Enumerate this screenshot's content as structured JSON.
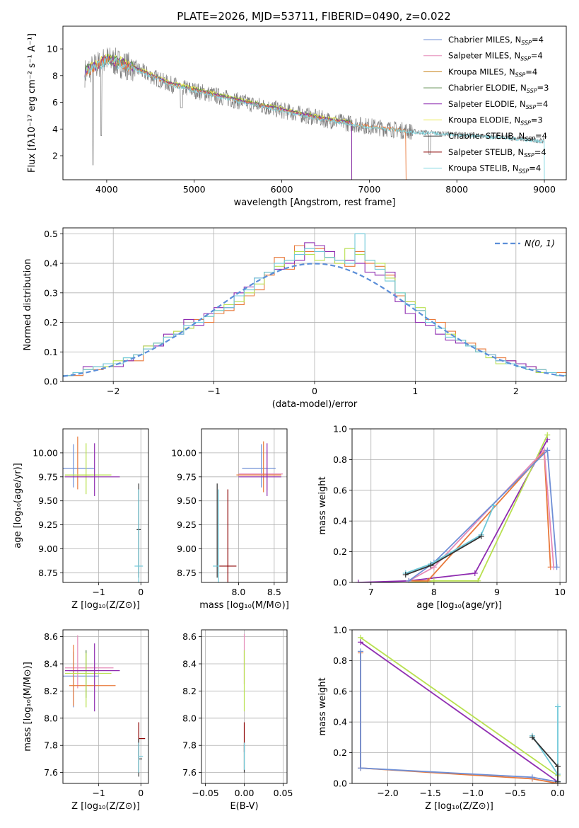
{
  "colors": {
    "chabrier_miles": "#6f8fd6",
    "salpeter_miles": "#e58ab8",
    "kroupa_miles": "#c8821a",
    "chabrier_elodie": "#5a8a4a",
    "salpeter_elodie": "#8e2bb0",
    "kroupa_elodie": "#e8e84a",
    "chabrier_stelib": "#333333",
    "salpeter_stelib": "#8b0000",
    "kroupa_stelib": "#7fd6e0",
    "data": "#7f7f7f",
    "normal": "#5b8ed8",
    "hist_orange": "#e8783a",
    "hist_lime": "#b8e050",
    "hist_cyan": "#6fc8d8"
  },
  "chart_data": [
    {
      "id": "spectrum",
      "type": "line",
      "title": "PLATE=2026, MJD=53711, FIBERID=0490, z=0.022",
      "xlabel": "wavelength [Angstrom, rest frame]",
      "ylabel": "Flux [fλ10⁻¹⁷ erg cm⁻² s⁻¹ A⁻¹]",
      "xlim": [
        3500,
        9250
      ],
      "ylim": [
        0.2,
        11.7
      ],
      "xticks": [
        4000,
        5000,
        6000,
        7000,
        8000,
        9000
      ],
      "yticks": [
        2,
        4,
        6,
        8,
        10
      ],
      "legend_position": "top-right",
      "legend": [
        {
          "base": "Chabrier MILES, N",
          "sub": "SSP",
          "tail": "=4",
          "color_key": "chabrier_miles"
        },
        {
          "base": "Salpeter MILES, N",
          "sub": "SSP",
          "tail": "=4",
          "color_key": "salpeter_miles"
        },
        {
          "base": "Kroupa MILES, N",
          "sub": "SSP",
          "tail": "=4",
          "color_key": "kroupa_miles"
        },
        {
          "base": "Chabrier ELODIE, N",
          "sub": "SSP",
          "tail": "=3",
          "color_key": "chabrier_elodie"
        },
        {
          "base": "Salpeter ELODIE, N",
          "sub": "SSP",
          "tail": "=4",
          "color_key": "salpeter_elodie"
        },
        {
          "base": "Kroupa ELODIE, N",
          "sub": "SSP",
          "tail": "=3",
          "color_key": "kroupa_elodie"
        },
        {
          "base": "Chabrier STELIB, N",
          "sub": "SSP",
          "tail": "=4",
          "color_key": "chabrier_stelib"
        },
        {
          "base": "Salpeter STELIB, N",
          "sub": "SSP",
          "tail": "=4",
          "color_key": "salpeter_stelib"
        },
        {
          "base": "Kroupa STELIB, N",
          "sub": "SSP",
          "tail": "=4",
          "color_key": "kroupa_stelib"
        }
      ],
      "data_trend": {
        "x": [
          3750,
          4000,
          4300,
          4700,
          5000,
          5500,
          6000,
          6500,
          7000,
          7500,
          8000,
          8500,
          9000
        ],
        "y": [
          8.2,
          9.2,
          8.6,
          7.4,
          6.9,
          6.1,
          5.4,
          4.7,
          4.2,
          3.8,
          3.6,
          3.4,
          3.1
        ]
      },
      "model_cutoffs": {
        "miles_end": 7420,
        "elodie_end": 6800,
        "stelib_end": 9000
      }
    },
    {
      "id": "residuals",
      "type": "bar",
      "xlabel": "(data-model)/error",
      "ylabel": "Normed distribution",
      "xlim": [
        -2.5,
        2.5
      ],
      "ylim": [
        0,
        0.52
      ],
      "xticks": [
        -2,
        -1,
        0,
        1,
        2
      ],
      "yticks": [
        0.0,
        0.1,
        0.2,
        0.3,
        0.4,
        0.5
      ],
      "legend_position": "top-right",
      "normal_label": "N(0, 1)",
      "bin_edges_start": -2.5,
      "bin_width": 0.1,
      "series": [
        {
          "color_key": "hist_orange",
          "values": [
            0.02,
            0.02,
            0.04,
            0.04,
            0.05,
            0.06,
            0.07,
            0.07,
            0.11,
            0.13,
            0.15,
            0.17,
            0.18,
            0.21,
            0.2,
            0.23,
            0.24,
            0.26,
            0.29,
            0.31,
            0.36,
            0.42,
            0.38,
            0.46,
            0.44,
            0.45,
            0.42,
            0.4,
            0.39,
            0.44,
            0.4,
            0.39,
            0.36,
            0.29,
            0.27,
            0.24,
            0.21,
            0.2,
            0.17,
            0.14,
            0.13,
            0.11,
            0.09,
            0.08,
            0.07,
            0.06,
            0.05,
            0.04,
            0.03,
            0.03
          ]
        },
        {
          "color_key": "salpeter_elodie",
          "values": [
            0.02,
            0.03,
            0.05,
            0.05,
            0.06,
            0.05,
            0.07,
            0.09,
            0.12,
            0.12,
            0.16,
            0.16,
            0.21,
            0.19,
            0.23,
            0.25,
            0.25,
            0.3,
            0.32,
            0.35,
            0.37,
            0.38,
            0.4,
            0.41,
            0.47,
            0.46,
            0.44,
            0.41,
            0.41,
            0.4,
            0.37,
            0.36,
            0.37,
            0.27,
            0.23,
            0.2,
            0.19,
            0.16,
            0.14,
            0.13,
            0.12,
            0.1,
            0.09,
            0.07,
            0.07,
            0.06,
            0.05,
            0.03,
            0.03,
            0.02
          ]
        },
        {
          "color_key": "hist_lime",
          "values": [
            0.02,
            0.03,
            0.04,
            0.05,
            0.05,
            0.07,
            0.08,
            0.09,
            0.12,
            0.13,
            0.15,
            0.17,
            0.18,
            0.2,
            0.22,
            0.24,
            0.26,
            0.27,
            0.3,
            0.33,
            0.37,
            0.39,
            0.41,
            0.44,
            0.43,
            0.41,
            0.42,
            0.4,
            0.45,
            0.43,
            0.41,
            0.4,
            0.35,
            0.3,
            0.27,
            0.25,
            0.2,
            0.18,
            0.16,
            0.14,
            0.12,
            0.1,
            0.08,
            0.06,
            0.06,
            0.05,
            0.04,
            0.03,
            0.03,
            0.02
          ]
        },
        {
          "color_key": "hist_cyan",
          "values": [
            0.02,
            0.03,
            0.04,
            0.05,
            0.06,
            0.06,
            0.08,
            0.09,
            0.11,
            0.13,
            0.15,
            0.16,
            0.19,
            0.2,
            0.22,
            0.24,
            0.25,
            0.29,
            0.31,
            0.35,
            0.37,
            0.4,
            0.41,
            0.43,
            0.45,
            0.44,
            0.42,
            0.41,
            0.4,
            0.5,
            0.41,
            0.38,
            0.34,
            0.3,
            0.26,
            0.24,
            0.2,
            0.18,
            0.15,
            0.14,
            0.12,
            0.1,
            0.09,
            0.07,
            0.06,
            0.05,
            0.04,
            0.04,
            0.03,
            0.02
          ]
        }
      ]
    },
    {
      "id": "age_vs_Z",
      "type": "scatter",
      "xlabel": "Z [log₁₀(Z/Z⊙)]",
      "ylabel": "age  [log₁₀(age/yr)]",
      "xlim": [
        -1.85,
        0.18
      ],
      "ylim": [
        8.65,
        10.25
      ],
      "xticks": [
        -1,
        0
      ],
      "yticks": [
        8.75,
        9.0,
        9.25,
        9.5,
        9.75,
        10.0
      ],
      "points": [
        {
          "color_key": "chabrier_miles",
          "x": -1.6,
          "y": 9.84,
          "xerr": [
            0.7,
            0.5
          ],
          "yerr": [
            0.2,
            0.25
          ]
        },
        {
          "color_key": "hist_orange",
          "x": -1.5,
          "y": 9.77,
          "xerr": [
            0.3,
            0.3
          ],
          "yerr": [
            0.15,
            0.4
          ]
        },
        {
          "color_key": "hist_lime",
          "x": -1.3,
          "y": 9.77,
          "xerr": [
            0.5,
            0.6
          ],
          "yerr": [
            0.2,
            0.33
          ]
        },
        {
          "color_key": "salpeter_elodie",
          "x": -1.1,
          "y": 9.75,
          "xerr": [
            0.7,
            0.6
          ],
          "yerr": [
            0.2,
            0.35
          ]
        },
        {
          "color_key": "chabrier_stelib",
          "x": -0.05,
          "y": 9.2,
          "xerr": [
            0.05,
            0.05
          ],
          "yerr": [
            0.5,
            0.48
          ]
        },
        {
          "color_key": "hist_cyan",
          "x": -0.05,
          "y": 8.82,
          "xerr": [
            0.1,
            0.1
          ],
          "yerr": [
            0.17,
            0.8
          ]
        }
      ]
    },
    {
      "id": "age_vs_mass",
      "type": "scatter",
      "xlabel": "mass [log₁₀(M/M⊙)]",
      "ylabel": "",
      "xlim": [
        7.48,
        8.68
      ],
      "ylim": [
        8.65,
        10.25
      ],
      "xticks": [
        8.0,
        8.5
      ],
      "yticks": [
        8.75,
        9.0,
        9.25,
        9.5,
        9.75,
        10.0
      ],
      "points": [
        {
          "color_key": "chabrier_miles",
          "x": 8.32,
          "y": 9.84,
          "xerr": [
            0.27,
            0.2
          ],
          "yerr": [
            0.2,
            0.25
          ]
        },
        {
          "color_key": "salpeter_miles",
          "x": 8.4,
          "y": 9.78,
          "xerr": [
            0.4,
            0.22
          ],
          "yerr": [
            0.17,
            0.25
          ]
        },
        {
          "color_key": "hist_orange",
          "x": 8.35,
          "y": 9.77,
          "xerr": [
            0.38,
            0.25
          ],
          "yerr": [
            0.18,
            0.35
          ]
        },
        {
          "color_key": "salpeter_elodie",
          "x": 8.4,
          "y": 9.75,
          "xerr": [
            0.4,
            0.2
          ],
          "yerr": [
            0.2,
            0.35
          ]
        },
        {
          "color_key": "chabrier_stelib",
          "x": 7.7,
          "y": 9.2,
          "xerr": [
            0.0,
            0.0
          ],
          "yerr": [
            0.5,
            0.48
          ]
        },
        {
          "color_key": "salpeter_stelib",
          "x": 7.85,
          "y": 8.82,
          "xerr": [
            0.12,
            0.12
          ],
          "yerr": [
            0.17,
            0.8
          ]
        },
        {
          "color_key": "hist_cyan",
          "x": 7.72,
          "y": 8.82,
          "xerr": [
            0.08,
            0.0
          ],
          "yerr": [
            0.17,
            0.8
          ]
        }
      ]
    },
    {
      "id": "weight_vs_age",
      "type": "line",
      "xlabel": "age  [log₁₀(age/yr)]",
      "ylabel": "mass weight",
      "xlim": [
        6.7,
        10.1
      ],
      "ylim": [
        0,
        1.0
      ],
      "xticks": [
        7,
        8,
        9,
        10
      ],
      "yticks": [
        0.0,
        0.2,
        0.4,
        0.6,
        0.8,
        1.0
      ],
      "series": [
        {
          "color_key": "salpeter_elodie",
          "x": [
            6.8,
            7.6,
            8.65,
            9.8
          ],
          "y": [
            0.0,
            0.01,
            0.06,
            0.93
          ]
        },
        {
          "color_key": "hist_lime",
          "x": [
            7.6,
            8.0,
            8.7,
            9.8
          ],
          "y": [
            0.0,
            0.01,
            0.01,
            0.96
          ]
        },
        {
          "color_key": "hist_orange",
          "x": [
            7.6,
            7.9,
            9.75,
            9.85
          ],
          "y": [
            0.01,
            0.01,
            0.85,
            0.1
          ]
        },
        {
          "color_key": "salpeter_miles",
          "x": [
            7.6,
            8.0,
            9.75,
            9.9
          ],
          "y": [
            0.01,
            0.1,
            0.86,
            0.1
          ]
        },
        {
          "color_key": "chabrier_miles",
          "x": [
            7.6,
            8.0,
            9.8,
            9.95
          ],
          "y": [
            0.01,
            0.13,
            0.86,
            0.1
          ]
        },
        {
          "color_key": "hist_cyan",
          "x": [
            7.55,
            7.95,
            8.75,
            8.95
          ],
          "y": [
            0.06,
            0.12,
            0.31,
            0.5
          ]
        },
        {
          "color_key": "chabrier_stelib",
          "x": [
            7.55,
            7.95,
            8.75
          ],
          "y": [
            0.05,
            0.11,
            0.3
          ]
        }
      ]
    },
    {
      "id": "mass_vs_Z",
      "type": "scatter",
      "xlabel": "Z [log₁₀(Z/Z⊙)]",
      "ylabel": "mass [log₁₀(M/M⊙)]",
      "xlim": [
        -1.85,
        0.18
      ],
      "ylim": [
        7.52,
        8.65
      ],
      "xticks": [
        -1,
        0
      ],
      "yticks": [
        7.6,
        7.8,
        8.0,
        8.2,
        8.4,
        8.6
      ],
      "points": [
        {
          "color_key": "chabrier_miles",
          "x": -1.6,
          "y": 8.31,
          "xerr": [
            0.6,
            0.6
          ],
          "yerr": [
            0.23,
            0.18
          ]
        },
        {
          "color_key": "salpeter_miles",
          "x": -1.5,
          "y": 8.37,
          "xerr": [
            0.3,
            0.85
          ],
          "yerr": [
            0.15,
            0.24
          ]
        },
        {
          "color_key": "hist_orange",
          "x": -1.6,
          "y": 8.24,
          "xerr": [
            0.1,
            1.0
          ],
          "yerr": [
            0.15,
            0.3
          ]
        },
        {
          "color_key": "chabrier_elodie",
          "x": -1.3,
          "y": 8.35,
          "xerr": [
            0.4,
            0.2
          ],
          "yerr": [
            0.2,
            0.15
          ]
        },
        {
          "color_key": "hist_lime",
          "x": -1.3,
          "y": 8.33,
          "xerr": [
            0.5,
            0.6
          ],
          "yerr": [
            0.25,
            0.15
          ]
        },
        {
          "color_key": "salpeter_elodie",
          "x": -1.1,
          "y": 8.35,
          "xerr": [
            0.7,
            0.6
          ],
          "yerr": [
            0.3,
            0.2
          ]
        },
        {
          "color_key": "salpeter_stelib",
          "x": -0.05,
          "y": 7.85,
          "xerr": [
            0.0,
            0.15
          ],
          "yerr": [
            0.15,
            0.12
          ]
        },
        {
          "color_key": "chabrier_stelib",
          "x": -0.05,
          "y": 7.7,
          "xerr": [
            0.0,
            0.08
          ],
          "yerr": [
            0.13,
            0.15
          ]
        },
        {
          "color_key": "hist_cyan",
          "x": -0.05,
          "y": 7.72,
          "xerr": [
            0.0,
            0.1
          ],
          "yerr": [
            0.12,
            0.1
          ]
        }
      ]
    },
    {
      "id": "mass_vs_ebv",
      "type": "scatter",
      "xlabel": "E(B-V)",
      "ylabel": "",
      "xlim": [
        -0.055,
        0.055
      ],
      "ylim": [
        7.52,
        8.65
      ],
      "xticks": [
        -0.05,
        0.0,
        0.05
      ],
      "xticklabels": [
        "−0.05",
        "0.00",
        "0.05"
      ],
      "yticks": [
        7.6,
        7.8,
        8.0,
        8.2,
        8.4,
        8.6
      ],
      "points": [
        {
          "color_key": "salpeter_miles",
          "x": 0,
          "y": 8.4,
          "xerr": [
            0,
            0
          ],
          "yerr": [
            0.15,
            0.22
          ]
        },
        {
          "color_key": "hist_lime",
          "x": 0,
          "y": 8.3,
          "xerr": [
            0,
            0
          ],
          "yerr": [
            0.25,
            0.2
          ]
        },
        {
          "color_key": "salpeter_stelib",
          "x": 0,
          "y": 7.85,
          "xerr": [
            0,
            0
          ],
          "yerr": [
            0.1,
            0.12
          ]
        },
        {
          "color_key": "chabrier_stelib",
          "x": 0,
          "y": 7.7,
          "xerr": [
            0,
            0
          ],
          "yerr": [
            0.1,
            0.1
          ]
        },
        {
          "color_key": "hist_cyan",
          "x": 0,
          "y": 7.72,
          "xerr": [
            0,
            0
          ],
          "yerr": [
            0.1,
            0.1
          ]
        }
      ]
    },
    {
      "id": "weight_vs_Z",
      "type": "line",
      "xlabel": "Z [log₁₀(Z/Z⊙)]",
      "ylabel": "mass weight",
      "xlim": [
        -2.42,
        0.1
      ],
      "ylim": [
        0,
        1.0
      ],
      "xticks": [
        -2.0,
        -1.5,
        -1.0,
        -0.5,
        0.0
      ],
      "xticklabels": [
        "−2.0",
        "−1.5",
        "−1.0",
        "−0.5",
        "0.0"
      ],
      "yticks": [
        0.0,
        0.2,
        0.4,
        0.6,
        0.8,
        1.0
      ],
      "series": [
        {
          "color_key": "hist_lime",
          "x": [
            -2.32,
            0.0,
            0.0
          ],
          "y": [
            0.95,
            0.05,
            0.0
          ]
        },
        {
          "color_key": "salpeter_elodie",
          "x": [
            -2.32,
            0.0
          ],
          "y": [
            0.92,
            0.01
          ]
        },
        {
          "color_key": "hist_orange",
          "x": [
            -2.32,
            -2.32,
            -0.3,
            0.0
          ],
          "y": [
            0.85,
            0.1,
            0.03,
            0.0
          ]
        },
        {
          "color_key": "chabrier_miles",
          "x": [
            -2.32,
            -2.32,
            -0.3,
            0.0
          ],
          "y": [
            0.86,
            0.1,
            0.04,
            0.01
          ]
        },
        {
          "color_key": "hist_cyan",
          "x": [
            -0.3,
            0.0,
            0.0,
            0.0
          ],
          "y": [
            0.31,
            0.06,
            0.5,
            0.01
          ]
        },
        {
          "color_key": "chabrier_stelib",
          "x": [
            -0.3,
            0.0,
            0.0
          ],
          "y": [
            0.3,
            0.11,
            0.01
          ]
        }
      ]
    }
  ]
}
